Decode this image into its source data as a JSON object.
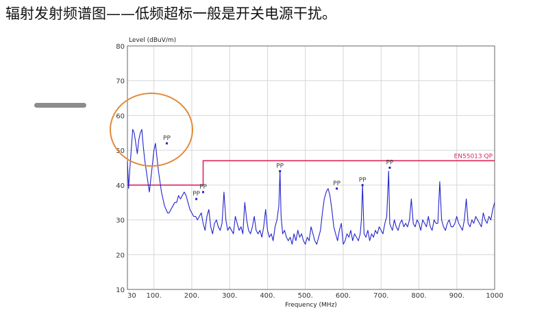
{
  "slide": {
    "title": "辐射发射频谱图——低频超标一般是开关电源干扰。"
  },
  "colors": {
    "trace": "#2222cc",
    "limit": "#e0245a",
    "grid": "#d6d6d6",
    "highlight_circle": "#e08a3a",
    "peak_marker": "#2222cc",
    "frame": "#666666"
  },
  "chart_data": {
    "type": "line",
    "xlabel": "Frequency (MHz)",
    "ylabel": "Level (dBuV/m)",
    "xlim": [
      30,
      1000
    ],
    "ylim": [
      10,
      80
    ],
    "x_ticks": [
      30,
      100,
      200,
      300,
      400,
      500,
      600,
      700,
      800,
      900,
      1000
    ],
    "x_tick_labels": [
      "30",
      "100.",
      "200.",
      "300.",
      "400.",
      "500.",
      "600.",
      "700.",
      "800.",
      "900.",
      "1000"
    ],
    "y_ticks": [
      10,
      20,
      30,
      40,
      50,
      60,
      70,
      80
    ],
    "y_tick_labels": [
      "10",
      "20",
      "30",
      "40",
      "50",
      "60",
      "70",
      "80"
    ],
    "grid": true,
    "limit_line": {
      "name": "EN55013 QP",
      "segments": [
        {
          "x": [
            30,
            230
          ],
          "y": 40
        },
        {
          "x": [
            230,
            1000
          ],
          "y": 47
        }
      ]
    },
    "series": [
      {
        "x": [
          30,
          33,
          36,
          40,
          44,
          48,
          52,
          56,
          60,
          64,
          68,
          72,
          76,
          80,
          84,
          88,
          92,
          96,
          100,
          104,
          108,
          112,
          116,
          120,
          124,
          128,
          132,
          136,
          140,
          145,
          150,
          155,
          160,
          165,
          170,
          175,
          180,
          185,
          190,
          195,
          200,
          205,
          210,
          215,
          220,
          225,
          230,
          235,
          240,
          245,
          250,
          255,
          260,
          265,
          270,
          275,
          280,
          285,
          290,
          295,
          300,
          305,
          310,
          315,
          320,
          325,
          330,
          335,
          340,
          345,
          350,
          355,
          360,
          365,
          370,
          375,
          380,
          385,
          390,
          395,
          400,
          405,
          410,
          415,
          420,
          425,
          430,
          433,
          436,
          440,
          445,
          450,
          455,
          460,
          465,
          470,
          475,
          480,
          485,
          490,
          495,
          500,
          505,
          510,
          515,
          520,
          525,
          530,
          535,
          540,
          545,
          550,
          555,
          560,
          565,
          570,
          575,
          580,
          585,
          590,
          595,
          600,
          605,
          610,
          615,
          620,
          625,
          630,
          635,
          640,
          645,
          648,
          651,
          655,
          660,
          665,
          670,
          675,
          680,
          685,
          690,
          695,
          700,
          705,
          710,
          715,
          720,
          723,
          726,
          730,
          735,
          740,
          745,
          750,
          755,
          760,
          765,
          770,
          775,
          780,
          785,
          790,
          795,
          800,
          805,
          810,
          815,
          820,
          825,
          830,
          835,
          840,
          845,
          850,
          855,
          860,
          865,
          870,
          875,
          880,
          885,
          890,
          895,
          900,
          905,
          910,
          915,
          920,
          925,
          930,
          935,
          940,
          945,
          950,
          955,
          960,
          965,
          970,
          975,
          980,
          985,
          990,
          995,
          1000
        ],
        "values": [
          47,
          39,
          44,
          50,
          56,
          55,
          52,
          49,
          53,
          55,
          56,
          51,
          47,
          44,
          41,
          38,
          42,
          46,
          50,
          52,
          48,
          44,
          41,
          38,
          36,
          34,
          33,
          32,
          32,
          33,
          34,
          35,
          35,
          37,
          36,
          37,
          38,
          37,
          35,
          33,
          32,
          31,
          31,
          30,
          31,
          32,
          29,
          27,
          31,
          33,
          28,
          26,
          29,
          30,
          28,
          27,
          29,
          38,
          30,
          27,
          28,
          27,
          26,
          31,
          29,
          27,
          28,
          26,
          35,
          30,
          27,
          26,
          28,
          31,
          27,
          26,
          27,
          25,
          28,
          33,
          27,
          25,
          26,
          24,
          28,
          30,
          34,
          44,
          31,
          26,
          27,
          25,
          24,
          25,
          23,
          26,
          24,
          27,
          25,
          26,
          24,
          23,
          25,
          24,
          28,
          26,
          24,
          23,
          25,
          27,
          32,
          36,
          38,
          39,
          37,
          33,
          28,
          26,
          24,
          27,
          29,
          23,
          24,
          26,
          25,
          27,
          24,
          26,
          25,
          24,
          26,
          30,
          40,
          26,
          25,
          27,
          24,
          26,
          25,
          27,
          26,
          28,
          27,
          26,
          29,
          31,
          44,
          29,
          28,
          27,
          30,
          28,
          27,
          29,
          30,
          28,
          29,
          28,
          30,
          36,
          29,
          28,
          30,
          29,
          27,
          30,
          29,
          28,
          31,
          28,
          27,
          30,
          29,
          29,
          41,
          30,
          28,
          27,
          29,
          30,
          28,
          28,
          29,
          31,
          29,
          28,
          27,
          30,
          36,
          29,
          28,
          30,
          29,
          31,
          30,
          29,
          28,
          32,
          30,
          29,
          31,
          30,
          33,
          35
        ]
      }
    ],
    "annotations": [
      {
        "text": "PP",
        "x": 134,
        "y": 52
      },
      {
        "text": "PP",
        "x": 212,
        "y": 36
      },
      {
        "text": "PP",
        "x": 230,
        "y": 38
      },
      {
        "text": "PP",
        "x": 433,
        "y": 44
      },
      {
        "text": "PP",
        "x": 583,
        "y": 39
      },
      {
        "text": "PP",
        "x": 651,
        "y": 40
      },
      {
        "text": "PP",
        "x": 723,
        "y": 45
      }
    ]
  }
}
